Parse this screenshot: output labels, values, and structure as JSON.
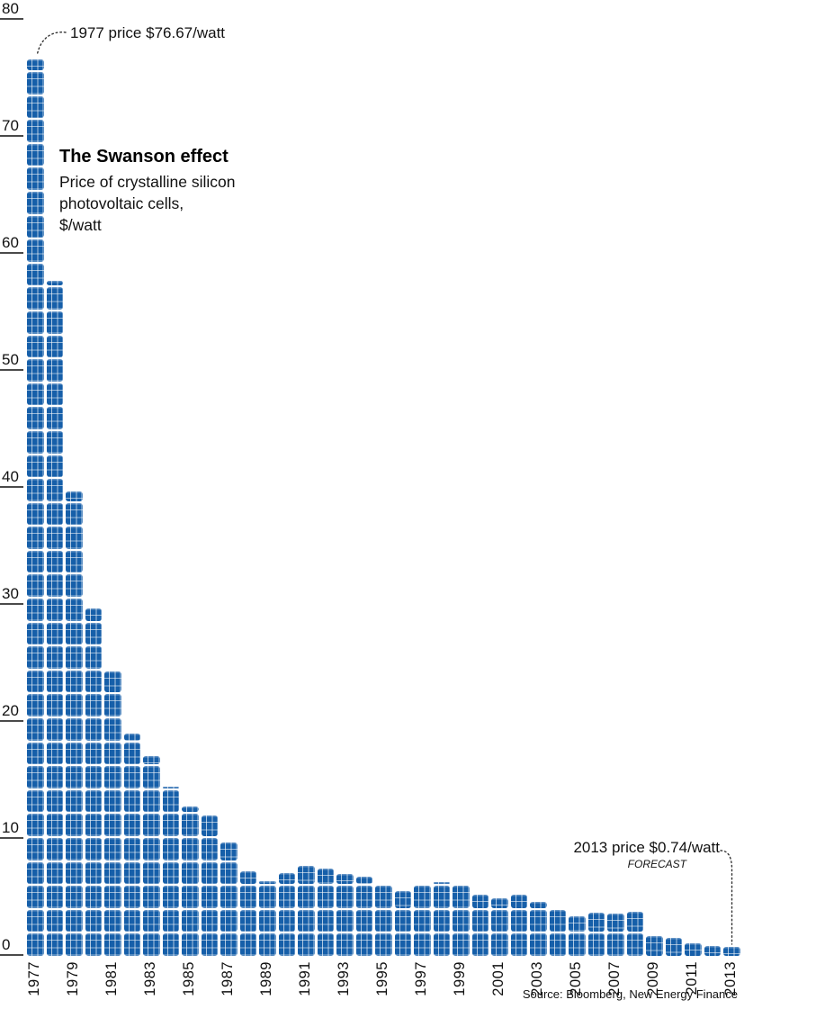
{
  "title": "The Swanson effect",
  "subtitle_lines": [
    "Price of crystalline silicon",
    "photovoltaic cells,",
    "$/watt"
  ],
  "annotation_start": "1977 price $76.67/watt",
  "annotation_end": "2013 price $0.74/watt",
  "annotation_end_tag": "FORECAST",
  "source": "Source: Bloomberg, New Energy Finance",
  "colors": {
    "panel_blue": "#165fa9",
    "cell_line": "#ffffff",
    "tick_line": "#4a4a4a",
    "text": "#111111",
    "connector": "#333333"
  },
  "chart_data": {
    "type": "bar",
    "title": "The Swanson effect",
    "subtitle": "Price of crystalline silicon photovoltaic cells, $/watt",
    "xlabel": "",
    "ylabel": "$/watt",
    "ylim": [
      0,
      80
    ],
    "yticks": [
      0,
      10,
      20,
      30,
      40,
      50,
      60,
      70,
      80
    ],
    "grid": false,
    "legend": "none",
    "bar_style": "solar-panel segments",
    "x": [
      1977,
      1978,
      1979,
      1980,
      1981,
      1982,
      1983,
      1984,
      1985,
      1986,
      1987,
      1988,
      1989,
      1990,
      1991,
      1992,
      1993,
      1994,
      1995,
      1996,
      1997,
      1998,
      1999,
      2000,
      2001,
      2002,
      2003,
      2004,
      2005,
      2006,
      2007,
      2008,
      2009,
      2010,
      2011,
      2012,
      2013
    ],
    "values": [
      76.67,
      57.7,
      39.7,
      29.7,
      24.3,
      19.0,
      17.1,
      14.5,
      12.8,
      12.0,
      9.7,
      7.2,
      6.4,
      7.1,
      7.7,
      7.45,
      7.0,
      6.75,
      6.2,
      5.55,
      6.0,
      6.3,
      6.2,
      5.2,
      4.9,
      5.2,
      4.6,
      4.1,
      3.4,
      3.7,
      3.6,
      3.75,
      1.7,
      1.55,
      1.1,
      0.85,
      0.74
    ],
    "xtick_labels": [
      "1977",
      "1979",
      "1981",
      "1983",
      "1985",
      "1987",
      "1989",
      "1991",
      "1993",
      "1995",
      "1997",
      "1999",
      "2001",
      "2003",
      "2005",
      "2007",
      "2009",
      "2011",
      "2013"
    ],
    "annotations": [
      {
        "text": "1977 price $76.67/watt",
        "target_year": 1977,
        "target_value": 76.67
      },
      {
        "text": "2013 price $0.74/watt",
        "tag": "FORECAST",
        "target_year": 2013,
        "target_value": 0.74
      }
    ]
  }
}
